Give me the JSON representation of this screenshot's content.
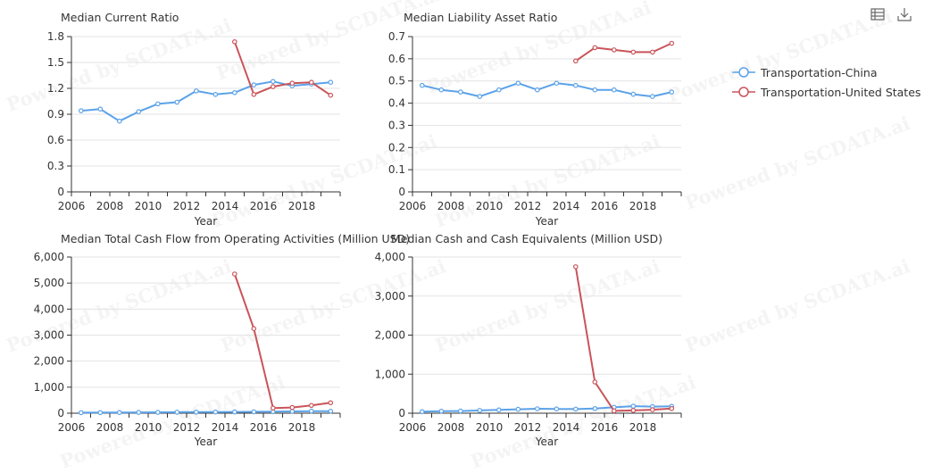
{
  "colors": {
    "china": "#5ba2e8",
    "us": "#c9545a",
    "grid": "#e3e3e3",
    "axis": "#333333"
  },
  "toolbar": {
    "icons": [
      "data-view-icon",
      "download-icon"
    ]
  },
  "legend": [
    {
      "label": "Transportation-China",
      "color": "#5ba2e8"
    },
    {
      "label": "Transportation-United States",
      "color": "#c9545a"
    }
  ],
  "watermark": "Powered by SCDATA.ai",
  "chart_data": [
    {
      "type": "line",
      "title": "Median Current Ratio",
      "xlabel": "Year",
      "x": [
        2006,
        2007,
        2008,
        2009,
        2010,
        2011,
        2012,
        2013,
        2014,
        2015,
        2016,
        2017,
        2018,
        2019
      ],
      "x_ticks": [
        "2006",
        "2008",
        "2010",
        "2012",
        "2014",
        "2016",
        "2018"
      ],
      "ylim": [
        0,
        1.8
      ],
      "y_ticks": [
        "0",
        "0.3",
        "0.6",
        "0.9",
        "1.2",
        "1.5",
        "1.8"
      ],
      "series": [
        {
          "name": "Transportation-China",
          "values": [
            0.94,
            0.96,
            0.82,
            0.93,
            1.02,
            1.04,
            1.17,
            1.13,
            1.15,
            1.24,
            1.28,
            1.23,
            1.25,
            1.27
          ]
        },
        {
          "name": "Transportation-United States",
          "values": [
            null,
            null,
            null,
            null,
            null,
            null,
            null,
            null,
            1.74,
            1.13,
            1.22,
            1.26,
            1.27,
            1.12
          ]
        }
      ]
    },
    {
      "type": "line",
      "title": "Median Liability Asset Ratio",
      "xlabel": "Year",
      "x": [
        2006,
        2007,
        2008,
        2009,
        2010,
        2011,
        2012,
        2013,
        2014,
        2015,
        2016,
        2017,
        2018,
        2019
      ],
      "x_ticks": [
        "2006",
        "2008",
        "2010",
        "2012",
        "2014",
        "2016",
        "2018"
      ],
      "ylim": [
        0,
        0.7
      ],
      "y_ticks": [
        "0",
        "0.1",
        "0.2",
        "0.3",
        "0.4",
        "0.5",
        "0.6",
        "0.7"
      ],
      "series": [
        {
          "name": "Transportation-China",
          "values": [
            0.48,
            0.46,
            0.45,
            0.43,
            0.46,
            0.49,
            0.46,
            0.49,
            0.48,
            0.46,
            0.46,
            0.44,
            0.43,
            0.45
          ]
        },
        {
          "name": "Transportation-United States",
          "values": [
            null,
            null,
            null,
            null,
            null,
            null,
            null,
            null,
            0.59,
            0.65,
            0.64,
            0.63,
            0.63,
            0.67
          ]
        }
      ]
    },
    {
      "type": "line",
      "title": "Median Total Cash Flow from Operating Activities (Million USD)",
      "xlabel": "Year",
      "x": [
        2006,
        2007,
        2008,
        2009,
        2010,
        2011,
        2012,
        2013,
        2014,
        2015,
        2016,
        2017,
        2018,
        2019
      ],
      "x_ticks": [
        "2006",
        "2008",
        "2010",
        "2012",
        "2014",
        "2016",
        "2018"
      ],
      "ylim": [
        0,
        6000
      ],
      "y_ticks": [
        "0",
        "1,000",
        "2,000",
        "3,000",
        "4,000",
        "5,000",
        "6,000"
      ],
      "series": [
        {
          "name": "Transportation-China",
          "values": [
            20,
            25,
            28,
            30,
            35,
            38,
            42,
            45,
            48,
            55,
            60,
            70,
            80,
            75
          ]
        },
        {
          "name": "Transportation-United States",
          "values": [
            null,
            null,
            null,
            null,
            null,
            null,
            null,
            null,
            5350,
            3250,
            200,
            220,
            300,
            400
          ]
        }
      ]
    },
    {
      "type": "line",
      "title": "Median Cash and Cash Equivalents (Million USD)",
      "xlabel": "Year",
      "x": [
        2006,
        2007,
        2008,
        2009,
        2010,
        2011,
        2012,
        2013,
        2014,
        2015,
        2016,
        2017,
        2018,
        2019
      ],
      "x_ticks": [
        "2006",
        "2008",
        "2010",
        "2012",
        "2014",
        "2016",
        "2018"
      ],
      "ylim": [
        0,
        4000
      ],
      "y_ticks": [
        "0",
        "1,000",
        "2,000",
        "3,000",
        "4,000"
      ],
      "series": [
        {
          "name": "Transportation-China",
          "values": [
            40,
            50,
            55,
            70,
            85,
            100,
            115,
            110,
            105,
            120,
            150,
            180,
            170,
            175
          ]
        },
        {
          "name": "Transportation-United States",
          "values": [
            null,
            null,
            null,
            null,
            null,
            null,
            null,
            null,
            3750,
            800,
            60,
            70,
            90,
            120
          ]
        }
      ]
    }
  ]
}
